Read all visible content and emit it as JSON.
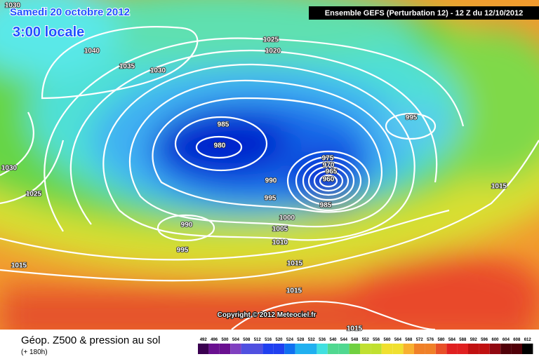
{
  "title": {
    "date": "Samedi 20 octobre 2012",
    "time": "3:00 locale"
  },
  "header": "Ensemble GEFS (Perturbation 12)  -  12 Z du 12/10/2012",
  "isobar_labels": [
    1030,
    1040,
    1035,
    1030,
    1025,
    1020,
    995,
    985,
    980,
    975,
    970,
    965,
    960,
    990,
    995,
    985,
    1000,
    1005,
    990,
    995,
    1010,
    1015,
    1015,
    1015,
    1015,
    1030,
    1025,
    1015
  ],
  "copyright": "Copyright © 2012 Meteociel.fr",
  "footer": {
    "title": "Géop. Z500 & pression au sol",
    "lead": "(+ 180h)"
  },
  "colorbar": {
    "labels": [
      492,
      496,
      500,
      504,
      508,
      512,
      516,
      520,
      524,
      528,
      532,
      536,
      540,
      544,
      548,
      552,
      556,
      560,
      564,
      568,
      572,
      576,
      580,
      584,
      588,
      592,
      596,
      600,
      604,
      608,
      612
    ]
  }
}
